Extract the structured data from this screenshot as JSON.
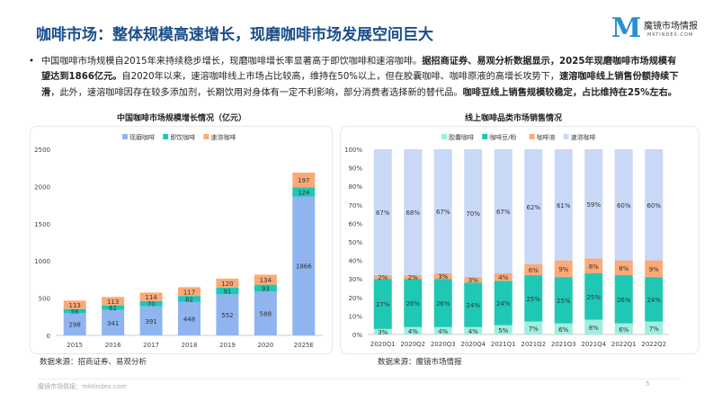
{
  "title": "咖啡市场：整体规模高速增长，现磨咖啡市场发展空间巨大",
  "logo": {
    "mark": "M",
    "name": "魔镜市场情报",
    "domain": "MKTINDEX.COM"
  },
  "paragraph": {
    "bullet": "•",
    "segments": [
      {
        "text": "中国咖啡市场规模自2015年来持续稳步增长，现磨咖啡增长率显著高于即饮咖啡和速溶咖啡。",
        "bold": false
      },
      {
        "text": "据招商证券、易观分析数据显示，2025年现磨咖啡市场规模有望达到1866亿元。",
        "bold": true
      },
      {
        "text": "自2020年以来，速溶咖啡线上市场占比较高，维持在50%以上，但在胶囊咖啡、咖啡原液的高增长攻势下，",
        "bold": false
      },
      {
        "text": "速溶咖啡线上销售份额持续下滑",
        "bold": true
      },
      {
        "text": "，此外，速溶咖啡因存在较多添加剂，长期饮用对身体有一定不利影响，部分消费者选择新的替代品。",
        "bold": false
      },
      {
        "text": "咖啡豆线上销售规模较稳定，占比维持在25%左右。",
        "bold": true
      }
    ]
  },
  "chart_data": [
    {
      "type": "bar",
      "stacked": true,
      "title": "中国咖啡市场规模增长情况（亿元）",
      "categories": [
        "2015",
        "2016",
        "2017",
        "2018",
        "2019",
        "2020",
        "2025E"
      ],
      "series": [
        {
          "name": "现磨咖啡",
          "color": "#8fb4f0",
          "values": [
            298,
            341,
            391,
            448,
            552,
            588,
            1866
          ]
        },
        {
          "name": "即饮咖啡",
          "color": "#1fc8b4",
          "values": [
            56,
            62,
            70,
            82,
            91,
            93,
            124
          ]
        },
        {
          "name": "速溶咖啡",
          "color": "#fbaa77",
          "values": [
            113,
            113,
            114,
            117,
            120,
            134,
            197
          ]
        }
      ],
      "ylim": [
        0,
        2500
      ],
      "yticks": [
        "0",
        "500",
        "1000",
        "1500",
        "2000",
        "2500"
      ],
      "legend": "top",
      "grid": false,
      "source": "数据来源：招商证券、易观分析"
    },
    {
      "type": "bar",
      "stacked": true,
      "percent": true,
      "title": "线上咖啡品类市场销售情况",
      "categories": [
        "2020Q1",
        "2020Q2",
        "2020Q3",
        "2020Q4",
        "2021Q1",
        "2021Q2",
        "2021Q3",
        "2021Q4",
        "2022Q1",
        "2022Q2"
      ],
      "series": [
        {
          "name": "胶囊咖啡",
          "color": "#a0eee0",
          "values": [
            3,
            4,
            4,
            4,
            5,
            7,
            6,
            8,
            6,
            7
          ]
        },
        {
          "name": "咖啡豆/粉",
          "color": "#1fc8b4",
          "values": [
            27,
            26,
            26,
            24,
            24,
            25,
            25,
            25,
            26,
            24
          ]
        },
        {
          "name": "咖啡液",
          "color": "#fbaa77",
          "values": [
            2,
            2,
            3,
            3,
            4,
            6,
            9,
            8,
            8,
            9
          ]
        },
        {
          "name": "速溶咖啡",
          "color": "#c9d8f7",
          "values": [
            67,
            68,
            67,
            70,
            67,
            62,
            61,
            59,
            60,
            60
          ]
        }
      ],
      "ylim": [
        0,
        100
      ],
      "yticks": [
        "0%",
        "10%",
        "20%",
        "30%",
        "40%",
        "50%",
        "60%",
        "70%",
        "80%",
        "90%",
        "100%"
      ],
      "legend": "top",
      "grid": false,
      "source": "数据来源：魔镜市场情报"
    }
  ],
  "footer": {
    "text": "魔镜市场情报：mktindex.com",
    "page": "5"
  }
}
